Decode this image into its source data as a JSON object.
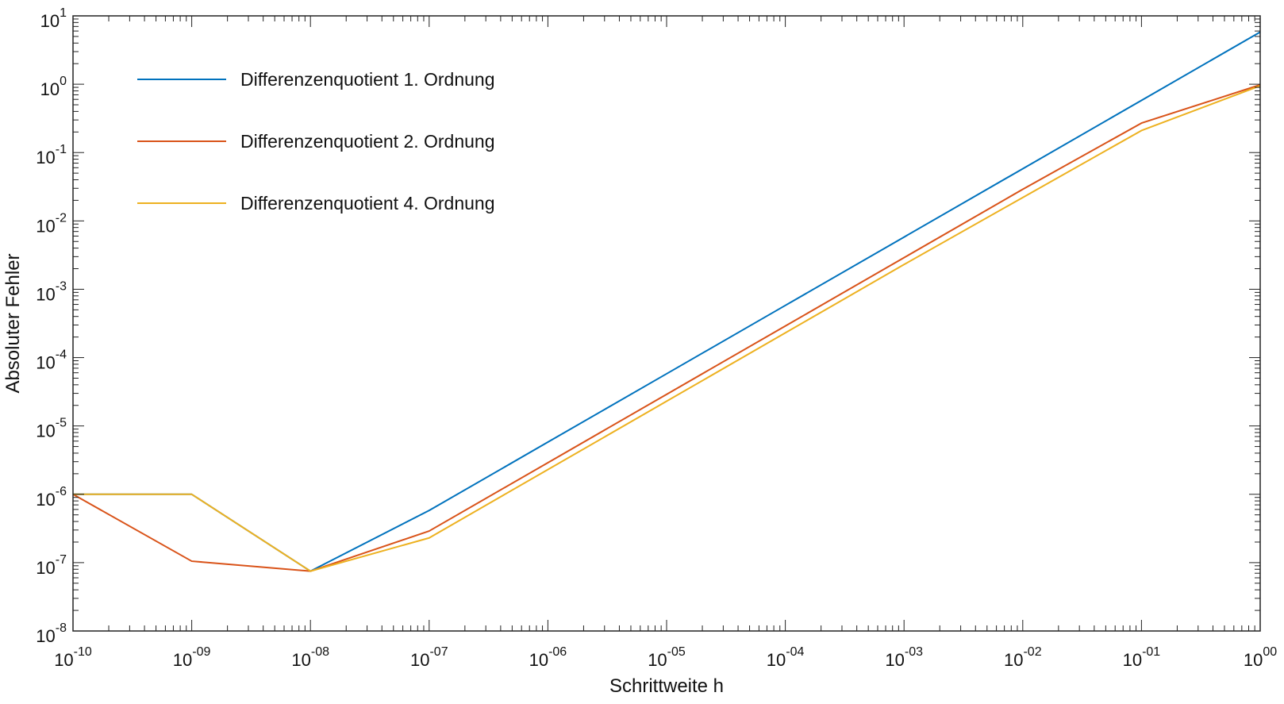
{
  "chart_data": {
    "type": "line",
    "title": "",
    "xlabel": "Schrittweite h",
    "ylabel": "Absoluter Fehler",
    "x_scale": "log",
    "y_scale": "log",
    "xlim": [
      1e-10,
      1
    ],
    "ylim": [
      1e-08,
      10
    ],
    "grid": false,
    "legend_position": "top-left",
    "x_ticks": [
      {
        "value": 1e-10,
        "base": "10",
        "exp": "-10"
      },
      {
        "value": 1e-09,
        "base": "10",
        "exp": "-09"
      },
      {
        "value": 1e-08,
        "base": "10",
        "exp": "-08"
      },
      {
        "value": 1e-07,
        "base": "10",
        "exp": "-07"
      },
      {
        "value": 1e-06,
        "base": "10",
        "exp": "-06"
      },
      {
        "value": 1e-05,
        "base": "10",
        "exp": "-05"
      },
      {
        "value": 0.0001,
        "base": "10",
        "exp": "-04"
      },
      {
        "value": 0.001,
        "base": "10",
        "exp": "-03"
      },
      {
        "value": 0.01,
        "base": "10",
        "exp": "-02"
      },
      {
        "value": 0.1,
        "base": "10",
        "exp": "-01"
      },
      {
        "value": 1,
        "base": "10",
        "exp": "00"
      }
    ],
    "y_ticks": [
      {
        "value": 1e-08,
        "base": "10",
        "exp": "-8"
      },
      {
        "value": 1e-07,
        "base": "10",
        "exp": "-7"
      },
      {
        "value": 1e-06,
        "base": "10",
        "exp": "-6"
      },
      {
        "value": 1e-05,
        "base": "10",
        "exp": "-5"
      },
      {
        "value": 0.0001,
        "base": "10",
        "exp": "-4"
      },
      {
        "value": 0.001,
        "base": "10",
        "exp": "-3"
      },
      {
        "value": 0.01,
        "base": "10",
        "exp": "-2"
      },
      {
        "value": 0.1,
        "base": "10",
        "exp": "-1"
      },
      {
        "value": 1,
        "base": "10",
        "exp": "0"
      },
      {
        "value": 10,
        "base": "10",
        "exp": "1"
      }
    ],
    "x": [
      1e-10,
      1e-09,
      1e-08,
      1e-07,
      1e-06,
      1e-05,
      0.0001,
      0.001,
      0.01,
      0.1,
      1
    ],
    "series": [
      {
        "name": "Differenzenquotient 1. Ordnung",
        "color": "#0072BD",
        "values": [
          1e-06,
          1e-06,
          7.5e-08,
          5.8e-07,
          5.8e-06,
          5.8e-05,
          0.00058,
          0.0058,
          0.058,
          0.58,
          5.8
        ]
      },
      {
        "name": "Differenzenquotient 2. Ordnung",
        "color": "#D95319",
        "values": [
          1e-06,
          1.05e-07,
          7.5e-08,
          2.9e-07,
          2.9e-06,
          2.9e-05,
          0.00029,
          0.0029,
          0.029,
          0.27,
          0.98
        ]
      },
      {
        "name": "Differenzenquotient 4. Ordnung",
        "color": "#EDB120",
        "values": [
          1e-06,
          1e-06,
          7.5e-08,
          2.3e-07,
          2.3e-06,
          2.3e-05,
          0.00023,
          0.0023,
          0.022,
          0.21,
          0.95
        ]
      }
    ]
  }
}
